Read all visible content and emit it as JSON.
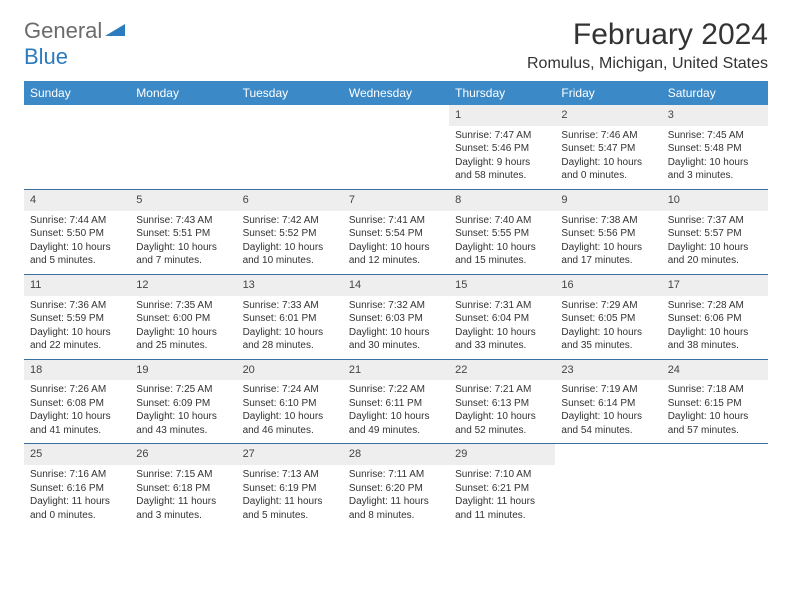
{
  "logo": {
    "part1": "General",
    "part2": "Blue"
  },
  "title": "February 2024",
  "location": "Romulus, Michigan, United States",
  "colors": {
    "header_bg": "#3b89c7",
    "header_text": "#ffffff",
    "daynum_bg": "#eeeeee",
    "week_border": "#3b6fa0",
    "logo_gray": "#6b6b6b",
    "logo_blue": "#2b7bbf"
  },
  "weekdays": [
    "Sunday",
    "Monday",
    "Tuesday",
    "Wednesday",
    "Thursday",
    "Friday",
    "Saturday"
  ],
  "weeks": [
    [
      {
        "day": "",
        "sunrise": "",
        "sunset": "",
        "daylight": ""
      },
      {
        "day": "",
        "sunrise": "",
        "sunset": "",
        "daylight": ""
      },
      {
        "day": "",
        "sunrise": "",
        "sunset": "",
        "daylight": ""
      },
      {
        "day": "",
        "sunrise": "",
        "sunset": "",
        "daylight": ""
      },
      {
        "day": "1",
        "sunrise": "Sunrise: 7:47 AM",
        "sunset": "Sunset: 5:46 PM",
        "daylight": "Daylight: 9 hours and 58 minutes."
      },
      {
        "day": "2",
        "sunrise": "Sunrise: 7:46 AM",
        "sunset": "Sunset: 5:47 PM",
        "daylight": "Daylight: 10 hours and 0 minutes."
      },
      {
        "day": "3",
        "sunrise": "Sunrise: 7:45 AM",
        "sunset": "Sunset: 5:48 PM",
        "daylight": "Daylight: 10 hours and 3 minutes."
      }
    ],
    [
      {
        "day": "4",
        "sunrise": "Sunrise: 7:44 AM",
        "sunset": "Sunset: 5:50 PM",
        "daylight": "Daylight: 10 hours and 5 minutes."
      },
      {
        "day": "5",
        "sunrise": "Sunrise: 7:43 AM",
        "sunset": "Sunset: 5:51 PM",
        "daylight": "Daylight: 10 hours and 7 minutes."
      },
      {
        "day": "6",
        "sunrise": "Sunrise: 7:42 AM",
        "sunset": "Sunset: 5:52 PM",
        "daylight": "Daylight: 10 hours and 10 minutes."
      },
      {
        "day": "7",
        "sunrise": "Sunrise: 7:41 AM",
        "sunset": "Sunset: 5:54 PM",
        "daylight": "Daylight: 10 hours and 12 minutes."
      },
      {
        "day": "8",
        "sunrise": "Sunrise: 7:40 AM",
        "sunset": "Sunset: 5:55 PM",
        "daylight": "Daylight: 10 hours and 15 minutes."
      },
      {
        "day": "9",
        "sunrise": "Sunrise: 7:38 AM",
        "sunset": "Sunset: 5:56 PM",
        "daylight": "Daylight: 10 hours and 17 minutes."
      },
      {
        "day": "10",
        "sunrise": "Sunrise: 7:37 AM",
        "sunset": "Sunset: 5:57 PM",
        "daylight": "Daylight: 10 hours and 20 minutes."
      }
    ],
    [
      {
        "day": "11",
        "sunrise": "Sunrise: 7:36 AM",
        "sunset": "Sunset: 5:59 PM",
        "daylight": "Daylight: 10 hours and 22 minutes."
      },
      {
        "day": "12",
        "sunrise": "Sunrise: 7:35 AM",
        "sunset": "Sunset: 6:00 PM",
        "daylight": "Daylight: 10 hours and 25 minutes."
      },
      {
        "day": "13",
        "sunrise": "Sunrise: 7:33 AM",
        "sunset": "Sunset: 6:01 PM",
        "daylight": "Daylight: 10 hours and 28 minutes."
      },
      {
        "day": "14",
        "sunrise": "Sunrise: 7:32 AM",
        "sunset": "Sunset: 6:03 PM",
        "daylight": "Daylight: 10 hours and 30 minutes."
      },
      {
        "day": "15",
        "sunrise": "Sunrise: 7:31 AM",
        "sunset": "Sunset: 6:04 PM",
        "daylight": "Daylight: 10 hours and 33 minutes."
      },
      {
        "day": "16",
        "sunrise": "Sunrise: 7:29 AM",
        "sunset": "Sunset: 6:05 PM",
        "daylight": "Daylight: 10 hours and 35 minutes."
      },
      {
        "day": "17",
        "sunrise": "Sunrise: 7:28 AM",
        "sunset": "Sunset: 6:06 PM",
        "daylight": "Daylight: 10 hours and 38 minutes."
      }
    ],
    [
      {
        "day": "18",
        "sunrise": "Sunrise: 7:26 AM",
        "sunset": "Sunset: 6:08 PM",
        "daylight": "Daylight: 10 hours and 41 minutes."
      },
      {
        "day": "19",
        "sunrise": "Sunrise: 7:25 AM",
        "sunset": "Sunset: 6:09 PM",
        "daylight": "Daylight: 10 hours and 43 minutes."
      },
      {
        "day": "20",
        "sunrise": "Sunrise: 7:24 AM",
        "sunset": "Sunset: 6:10 PM",
        "daylight": "Daylight: 10 hours and 46 minutes."
      },
      {
        "day": "21",
        "sunrise": "Sunrise: 7:22 AM",
        "sunset": "Sunset: 6:11 PM",
        "daylight": "Daylight: 10 hours and 49 minutes."
      },
      {
        "day": "22",
        "sunrise": "Sunrise: 7:21 AM",
        "sunset": "Sunset: 6:13 PM",
        "daylight": "Daylight: 10 hours and 52 minutes."
      },
      {
        "day": "23",
        "sunrise": "Sunrise: 7:19 AM",
        "sunset": "Sunset: 6:14 PM",
        "daylight": "Daylight: 10 hours and 54 minutes."
      },
      {
        "day": "24",
        "sunrise": "Sunrise: 7:18 AM",
        "sunset": "Sunset: 6:15 PM",
        "daylight": "Daylight: 10 hours and 57 minutes."
      }
    ],
    [
      {
        "day": "25",
        "sunrise": "Sunrise: 7:16 AM",
        "sunset": "Sunset: 6:16 PM",
        "daylight": "Daylight: 11 hours and 0 minutes."
      },
      {
        "day": "26",
        "sunrise": "Sunrise: 7:15 AM",
        "sunset": "Sunset: 6:18 PM",
        "daylight": "Daylight: 11 hours and 3 minutes."
      },
      {
        "day": "27",
        "sunrise": "Sunrise: 7:13 AM",
        "sunset": "Sunset: 6:19 PM",
        "daylight": "Daylight: 11 hours and 5 minutes."
      },
      {
        "day": "28",
        "sunrise": "Sunrise: 7:11 AM",
        "sunset": "Sunset: 6:20 PM",
        "daylight": "Daylight: 11 hours and 8 minutes."
      },
      {
        "day": "29",
        "sunrise": "Sunrise: 7:10 AM",
        "sunset": "Sunset: 6:21 PM",
        "daylight": "Daylight: 11 hours and 11 minutes."
      },
      {
        "day": "",
        "sunrise": "",
        "sunset": "",
        "daylight": ""
      },
      {
        "day": "",
        "sunrise": "",
        "sunset": "",
        "daylight": ""
      }
    ]
  ]
}
